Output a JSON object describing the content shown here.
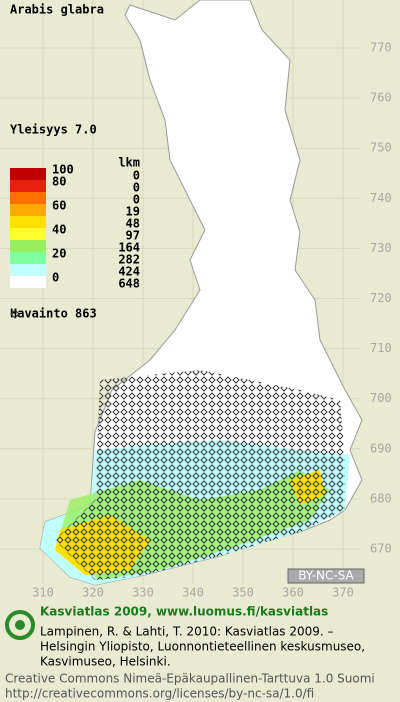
{
  "header": {
    "title": "Arabis glabra",
    "frequency": "Yleisyys 7.0"
  },
  "legend": {
    "title": "lkm",
    "rows": [
      {
        "label": "100",
        "count": "0",
        "color": "#c00000"
      },
      {
        "label": "80",
        "count": "0",
        "color": "#e82010"
      },
      {
        "label": null,
        "count": "0",
        "color": "#ff7000"
      },
      {
        "label": "60",
        "count": "19",
        "color": "#ffaa00"
      },
      {
        "label": null,
        "count": "48",
        "color": "#ffe000"
      },
      {
        "label": "40",
        "count": "97",
        "color": "#ffff30"
      },
      {
        "label": null,
        "count": "164",
        "color": "#98f060"
      },
      {
        "label": "20",
        "count": "282",
        "color": "#80ffa0"
      },
      {
        "label": null,
        "count": "424",
        "color": "#c0ffff"
      },
      {
        "label": "0",
        "count": "648",
        "color": "#ffffff"
      }
    ],
    "observations": "Havainto  863"
  },
  "grid": {
    "north": [
      770,
      760,
      750,
      740,
      730,
      720,
      710,
      700,
      690,
      680,
      670
    ],
    "east": [
      310,
      320,
      330,
      340,
      350,
      360,
      370
    ]
  },
  "badge": "BY-NC-SA",
  "footer": {
    "heading": "Kasviatlas 2009, www.luomus.fi/kasviatlas",
    "citation": [
      "Lampinen, R. & Lahti, T. 2010: Kasviatlas 2009. –",
      "Helsingin Yliopisto, Luonnontieteellinen keskusmuseo,",
      "Kasvimuseo, Helsinki."
    ],
    "license": [
      "Creative Commons Nimeä-Epäkaupallinen-Tarttuva 1.0 Suomi",
      "http://creativecommons.org/licenses/by-nc-sa/1.0/fi"
    ]
  }
}
